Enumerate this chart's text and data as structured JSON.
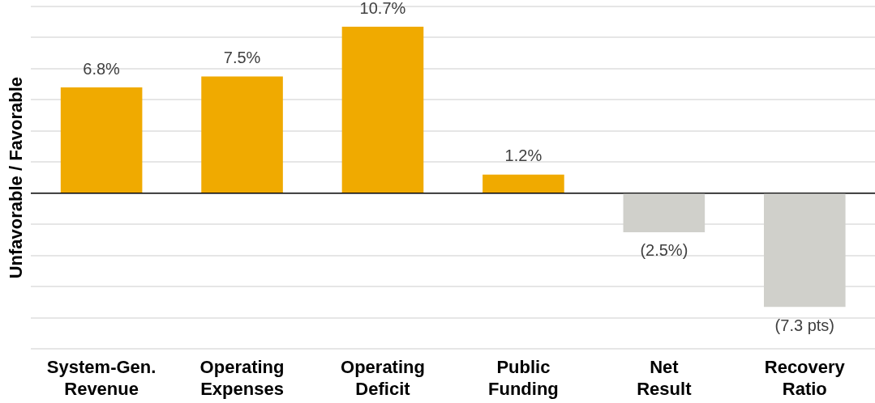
{
  "chart_data": {
    "type": "bar",
    "ylabel": "Unfavorable / Favorable",
    "categories": [
      "System-Gen. Revenue",
      "Operating Expenses",
      "Operating Deficit",
      "Public Funding",
      "Net Result",
      "Recovery Ratio"
    ],
    "values": [
      6.8,
      7.5,
      10.7,
      1.2,
      -2.5,
      -7.3
    ],
    "colors": [
      "#f0aa00",
      "#f0aa00",
      "#f0aa00",
      "#f0aa00",
      "#d0d0cb",
      "#d0d0cb"
    ],
    "value_labels": [
      "6.8%",
      "7.5%",
      "10.7%",
      "1.2%",
      "(2.5%)",
      "(7.3 pts)"
    ],
    "ylim": [
      -10,
      12
    ],
    "grid": "y",
    "legend": false,
    "tick_labels": "x"
  }
}
